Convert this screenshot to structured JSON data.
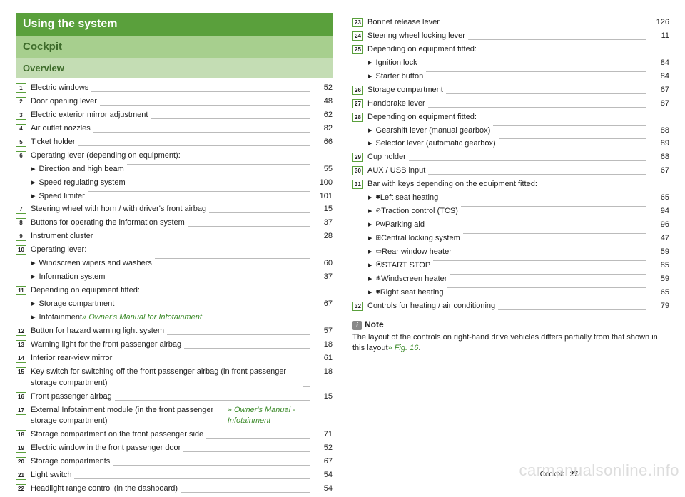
{
  "headers": {
    "main": "Using the system",
    "sub1": "Cockpit",
    "sub2": "Overview"
  },
  "col1": [
    {
      "n": "1",
      "label": "Electric windows",
      "page": "52"
    },
    {
      "n": "2",
      "label": "Door opening lever",
      "page": "48"
    },
    {
      "n": "3",
      "label": "Electric exterior mirror adjustment",
      "page": "62"
    },
    {
      "n": "4",
      "label": "Air outlet nozzles",
      "page": "82"
    },
    {
      "n": "5",
      "label": "Ticket holder",
      "page": "66"
    },
    {
      "n": "6",
      "label": "Operating lever (depending on equipment):",
      "page": "",
      "subs": [
        {
          "label": "Direction and high beam",
          "page": "55"
        },
        {
          "label": "Speed regulating system",
          "page": "100"
        },
        {
          "label": "Speed limiter",
          "page": "101"
        }
      ]
    },
    {
      "n": "7",
      "label": "Steering wheel with horn / with driver's front airbag",
      "page": "15"
    },
    {
      "n": "8",
      "label": "Buttons for operating the information system",
      "page": "37"
    },
    {
      "n": "9",
      "label": "Instrument cluster",
      "page": "28"
    },
    {
      "n": "10",
      "label": "Operating lever:",
      "page": "",
      "subs": [
        {
          "label": "Windscreen wipers and washers",
          "page": "60"
        },
        {
          "label": "Information system",
          "page": "37"
        }
      ]
    },
    {
      "n": "11",
      "label": "Depending on equipment fitted:",
      "page": "",
      "subs": [
        {
          "label": "Storage compartment",
          "page": "67"
        },
        {
          "label_html": "Infotainment_ref",
          "label": "Infotainment ",
          "ref": "» Owner's Manual for Infotainment",
          "page": ""
        }
      ]
    },
    {
      "n": "12",
      "label": "Button for hazard warning light system",
      "page": "57"
    },
    {
      "n": "13",
      "label": "Warning light for the front passenger airbag",
      "page": "18"
    },
    {
      "n": "14",
      "label": "Interior rear-view mirror",
      "page": "61"
    },
    {
      "n": "15",
      "label_wrap": true,
      "label": "Key switch for switching off the front passenger airbag (in front passenger storage compartment)",
      "page": "18"
    },
    {
      "n": "16",
      "label": "Front passenger airbag",
      "page": "15"
    },
    {
      "n": "17",
      "label_wrap": true,
      "label": "External Infotainment module (in the front passenger storage compartment) ",
      "ref": "» Owner's Manual - Infotainment",
      "page": ""
    },
    {
      "n": "18",
      "label": "Storage compartment on the front passenger side",
      "page": "71"
    },
    {
      "n": "19",
      "label": "Electric window in the front passenger door",
      "page": "52"
    },
    {
      "n": "20",
      "label": "Storage compartments",
      "page": "67"
    },
    {
      "n": "21",
      "label": "Light switch",
      "page": "54"
    },
    {
      "n": "22",
      "label": "Headlight range control (in the dashboard)",
      "page": "54"
    }
  ],
  "col2": [
    {
      "n": "23",
      "label": "Bonnet release lever",
      "page": "126"
    },
    {
      "n": "24",
      "label": "Steering wheel locking lever",
      "page": "11"
    },
    {
      "n": "25",
      "label": "Depending on equipment fitted:",
      "page": "",
      "subs": [
        {
          "label": "Ignition lock",
          "page": "84"
        },
        {
          "label": "Starter button",
          "page": "84"
        }
      ]
    },
    {
      "n": "26",
      "label": "Storage compartment",
      "page": "67"
    },
    {
      "n": "27",
      "label": "Handbrake lever",
      "page": "87"
    },
    {
      "n": "28",
      "label": "Depending on equipment fitted:",
      "page": "",
      "subs": [
        {
          "label": "Gearshift lever (manual gearbox)",
          "page": "88"
        },
        {
          "label": "Selector lever (automatic gearbox)",
          "page": "89"
        }
      ]
    },
    {
      "n": "29",
      "label": "Cup holder",
      "page": "68"
    },
    {
      "n": "30",
      "label": "AUX / USB input",
      "page": "67"
    },
    {
      "n": "31",
      "label": "Bar with keys depending on the equipment fitted:",
      "page": "",
      "subs": [
        {
          "icon": "🞺",
          "label": "Left seat heating",
          "page": "65"
        },
        {
          "icon": "⊘",
          "label": "Traction control (TCS)",
          "page": "94"
        },
        {
          "icon": "P𝗐",
          "label": "Parking aid",
          "page": "96"
        },
        {
          "icon": "⊞",
          "label": "Central locking system",
          "page": "47"
        },
        {
          "icon": "▭",
          "label": "Rear window heater",
          "page": "59"
        },
        {
          "icon": "⦿",
          "label": "START STOP",
          "page": "85"
        },
        {
          "icon": "❄",
          "label": "Windscreen heater",
          "page": "59"
        },
        {
          "icon": "🞺",
          "label": "Right seat heating",
          "page": "65"
        }
      ]
    },
    {
      "n": "32",
      "label": "Controls for heating / air conditioning",
      "page": "79"
    }
  ],
  "note": {
    "title": "Note",
    "body_pre": "The layout of the controls on right-hand drive vehicles differs partially from that shown in this layout",
    "body_ref": "» Fig. 16",
    "body_post": "."
  },
  "footer": {
    "section": "Cockpit",
    "page": "27"
  },
  "watermark": "carmanualsonline.info"
}
